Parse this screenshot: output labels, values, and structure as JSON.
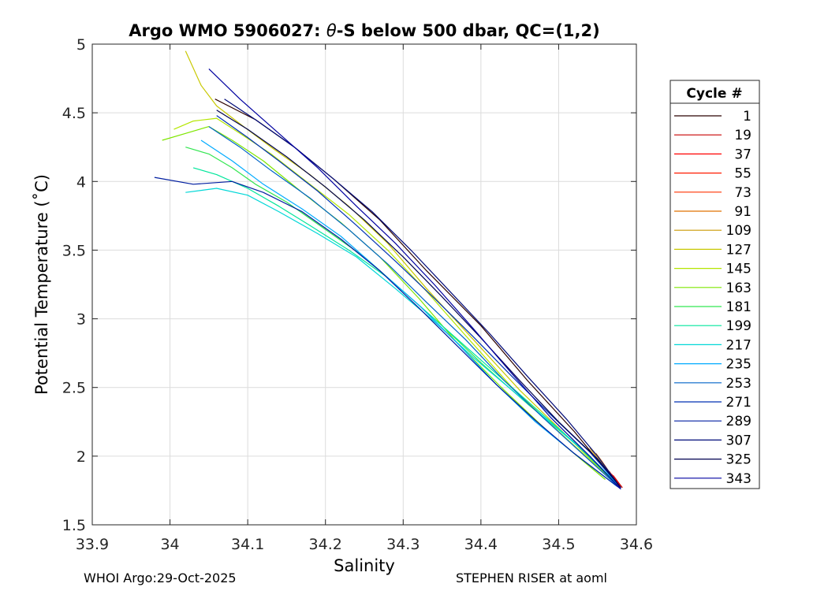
{
  "chart_data": {
    "type": "line",
    "title_prefix": "Argo WMO 5906027: ",
    "title_theta": "θ",
    "title_suffix": "-S below 500 dbar,  QC=(1,2)",
    "xlabel": "Salinity",
    "ylabel": "Potential Temperature (˚C)",
    "xlim": [
      33.9,
      34.6
    ],
    "ylim": [
      1.5,
      5
    ],
    "xticks": [
      33.9,
      34,
      34.1,
      34.2,
      34.3,
      34.4,
      34.5,
      34.6
    ],
    "xtick_labels": [
      "33.9",
      "34",
      "34.1",
      "34.2",
      "34.3",
      "34.4",
      "34.5",
      "34.6"
    ],
    "yticks": [
      1.5,
      2,
      2.5,
      3,
      3.5,
      4,
      4.5,
      5
    ],
    "ytick_labels": [
      "1.5",
      "2",
      "2.5",
      "3",
      "3.5",
      "4",
      "4.5",
      "5"
    ],
    "grid": true,
    "legend_title": "Cycle #",
    "legend_position": "right-outside",
    "series": [
      {
        "name": "1",
        "color": "#2b0000",
        "x": [
          34.058,
          34.11,
          34.16,
          34.21,
          34.27,
          34.33,
          34.4,
          34.46,
          34.52,
          34.578
        ],
        "y": [
          4.6,
          4.45,
          4.25,
          4.02,
          3.72,
          3.35,
          2.95,
          2.55,
          2.18,
          1.78
        ]
      },
      {
        "name": "19",
        "color": "#c80000",
        "x": [
          34.57,
          34.574,
          34.578,
          34.582
        ],
        "y": [
          1.86,
          1.83,
          1.8,
          1.77
        ]
      },
      {
        "name": "37",
        "color": "#ff0000",
        "x": [
          34.568,
          34.573,
          34.577,
          34.58
        ],
        "y": [
          1.87,
          1.83,
          1.8,
          1.77
        ]
      },
      {
        "name": "55",
        "color": "#ff1a00",
        "x": [
          34.566,
          34.571,
          34.575,
          34.579
        ],
        "y": [
          1.88,
          1.84,
          1.81,
          1.78
        ]
      },
      {
        "name": "73",
        "color": "#ff3300",
        "x": [
          34.565,
          34.57,
          34.574,
          34.578
        ],
        "y": [
          1.89,
          1.85,
          1.81,
          1.78
        ]
      },
      {
        "name": "91",
        "color": "#e07000",
        "x": [
          34.548,
          34.556,
          34.562,
          34.568
        ],
        "y": [
          2.02,
          1.96,
          1.91,
          1.86
        ]
      },
      {
        "name": "109",
        "color": "#cc9900",
        "x": [
          34.54,
          34.548,
          34.555,
          34.562
        ],
        "y": [
          2.06,
          2.0,
          1.95,
          1.9
        ]
      },
      {
        "name": "127",
        "color": "#c8c800",
        "x": [
          34.02,
          34.04,
          34.06,
          34.09,
          34.13,
          34.18,
          34.23,
          34.28,
          34.33,
          34.39,
          34.45,
          34.51,
          34.57
        ],
        "y": [
          4.95,
          4.7,
          4.55,
          4.42,
          4.25,
          4.05,
          3.82,
          3.55,
          3.22,
          2.85,
          2.48,
          2.15,
          1.82
        ]
      },
      {
        "name": "145",
        "color": "#b4e600",
        "x": [
          34.005,
          34.03,
          34.06,
          34.09,
          34.13,
          34.18,
          34.23,
          34.28,
          34.33,
          34.38,
          34.44,
          34.5,
          34.57
        ],
        "y": [
          4.38,
          4.44,
          4.46,
          4.35,
          4.2,
          3.98,
          3.76,
          3.5,
          3.2,
          2.88,
          2.5,
          2.18,
          1.82
        ]
      },
      {
        "name": "163",
        "color": "#7ee600",
        "x": [
          33.99,
          34.02,
          34.05,
          34.08,
          34.12,
          34.17,
          34.22,
          34.27,
          34.32,
          34.37,
          34.43,
          34.49,
          34.56
        ],
        "y": [
          4.3,
          4.35,
          4.4,
          4.3,
          4.15,
          3.92,
          3.7,
          3.45,
          3.15,
          2.82,
          2.48,
          2.16,
          1.83
        ]
      },
      {
        "name": "181",
        "color": "#32e650",
        "x": [
          34.02,
          34.05,
          34.08,
          34.11,
          34.15,
          34.2,
          34.25,
          34.3,
          34.35,
          34.4,
          34.46,
          34.52,
          34.57
        ],
        "y": [
          4.25,
          4.2,
          4.1,
          3.98,
          3.85,
          3.65,
          3.45,
          3.2,
          2.95,
          2.68,
          2.38,
          2.1,
          1.82
        ]
      },
      {
        "name": "199",
        "color": "#00e69b",
        "x": [
          34.03,
          34.06,
          34.1,
          34.14,
          34.18,
          34.23,
          34.28,
          34.33,
          34.38,
          34.43,
          34.48,
          34.53,
          34.57
        ],
        "y": [
          4.1,
          4.05,
          3.95,
          3.82,
          3.68,
          3.5,
          3.3,
          3.05,
          2.8,
          2.55,
          2.3,
          2.05,
          1.82
        ]
      },
      {
        "name": "217",
        "color": "#00d7d7",
        "x": [
          34.02,
          34.06,
          34.1,
          34.14,
          34.19,
          34.24,
          34.29,
          34.34,
          34.39,
          34.44,
          34.49,
          34.54,
          34.575
        ],
        "y": [
          3.92,
          3.95,
          3.9,
          3.78,
          3.62,
          3.45,
          3.22,
          2.98,
          2.72,
          2.48,
          2.24,
          2.0,
          1.8
        ]
      },
      {
        "name": "235",
        "color": "#00aaff",
        "x": [
          34.04,
          34.08,
          34.12,
          34.17,
          34.22,
          34.27,
          34.32,
          34.37,
          34.42,
          34.47,
          34.52,
          34.575
        ],
        "y": [
          4.3,
          4.15,
          3.98,
          3.8,
          3.6,
          3.35,
          3.1,
          2.82,
          2.52,
          2.25,
          2.02,
          1.78
        ]
      },
      {
        "name": "253",
        "color": "#0064c8",
        "x": [
          34.05,
          34.09,
          34.13,
          34.18,
          34.23,
          34.28,
          34.33,
          34.38,
          34.43,
          34.48,
          34.53,
          34.578
        ],
        "y": [
          4.4,
          4.25,
          4.08,
          3.88,
          3.65,
          3.4,
          3.12,
          2.85,
          2.55,
          2.28,
          2.02,
          1.77
        ]
      },
      {
        "name": "271",
        "color": "#0032b4",
        "x": [
          34.06,
          34.1,
          34.14,
          34.19,
          34.24,
          34.29,
          34.34,
          34.39,
          34.44,
          34.49,
          34.54,
          34.58
        ],
        "y": [
          4.48,
          4.32,
          4.15,
          3.93,
          3.68,
          3.42,
          3.15,
          2.87,
          2.58,
          2.3,
          2.03,
          1.77
        ]
      },
      {
        "name": "289",
        "color": "#001ea0",
        "x": [
          33.98,
          34.03,
          34.08,
          34.12,
          34.17,
          34.22,
          34.27,
          34.32,
          34.37,
          34.42,
          34.47,
          34.52,
          34.58
        ],
        "y": [
          4.03,
          3.98,
          4.0,
          3.92,
          3.78,
          3.58,
          3.35,
          3.08,
          2.8,
          2.52,
          2.26,
          2.02,
          1.76
        ]
      },
      {
        "name": "307",
        "color": "#000a78",
        "x": [
          34.07,
          34.11,
          34.16,
          34.21,
          34.26,
          34.31,
          34.36,
          34.41,
          34.46,
          34.51,
          34.55,
          34.58
        ],
        "y": [
          4.6,
          4.45,
          4.25,
          4.02,
          3.78,
          3.5,
          3.2,
          2.9,
          2.58,
          2.27,
          2.0,
          1.77
        ]
      },
      {
        "name": "325",
        "color": "#000050",
        "x": [
          34.06,
          34.1,
          34.15,
          34.2,
          34.25,
          34.3,
          34.35,
          34.4,
          34.45,
          34.5,
          34.55,
          34.58
        ],
        "y": [
          4.52,
          4.38,
          4.18,
          3.96,
          3.72,
          3.45,
          3.16,
          2.86,
          2.55,
          2.25,
          1.98,
          1.77
        ]
      },
      {
        "name": "343",
        "color": "#0000a0",
        "x": [
          34.05,
          34.09,
          34.14,
          34.19,
          34.24,
          34.29,
          34.34,
          34.39,
          34.44,
          34.49,
          34.54,
          34.58
        ],
        "y": [
          4.82,
          4.6,
          4.35,
          4.1,
          3.82,
          3.55,
          3.25,
          2.93,
          2.6,
          2.28,
          2.0,
          1.76
        ]
      }
    ]
  },
  "footer": {
    "left": "WHOI Argo:29-Oct-2025",
    "right": "STEPHEN RISER at aoml"
  }
}
